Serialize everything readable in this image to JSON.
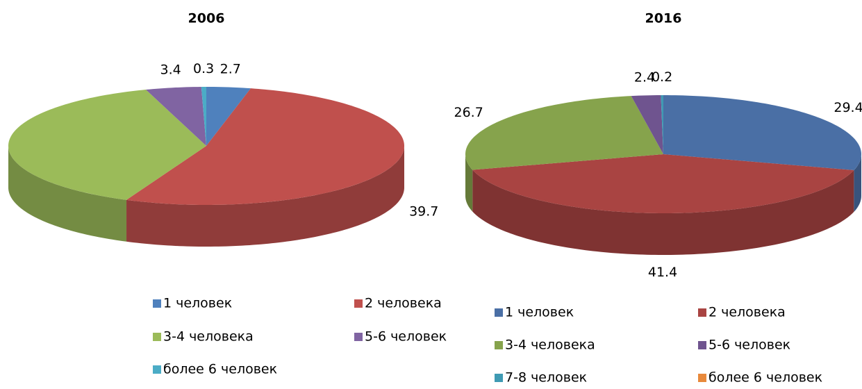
{
  "chart_data": [
    {
      "type": "pie",
      "title": "2006",
      "categories": [
        "1 человек",
        "2 человека",
        "3-4 человека",
        "5-6 человек",
        "более 6 человек"
      ],
      "values": [
        2.7,
        39.7,
        28.8,
        3.4,
        0.3
      ],
      "colors": [
        "#4f81bd",
        "#c0504d",
        "#9bbb59",
        "#8064a2",
        "#4bacc6"
      ]
    },
    {
      "type": "pie",
      "title": "2016",
      "categories": [
        "1 человек",
        "2 человека",
        "3-4 человека",
        "5-6 человек",
        "7-8 человек",
        "более 6 человек"
      ],
      "values": [
        29.4,
        41.4,
        26.7,
        2.4,
        0.2,
        0
      ],
      "colors": [
        "#4a6fa5",
        "#a94442",
        "#86a34c",
        "#6f548f",
        "#3f9ab3",
        "#e8893b"
      ]
    }
  ]
}
